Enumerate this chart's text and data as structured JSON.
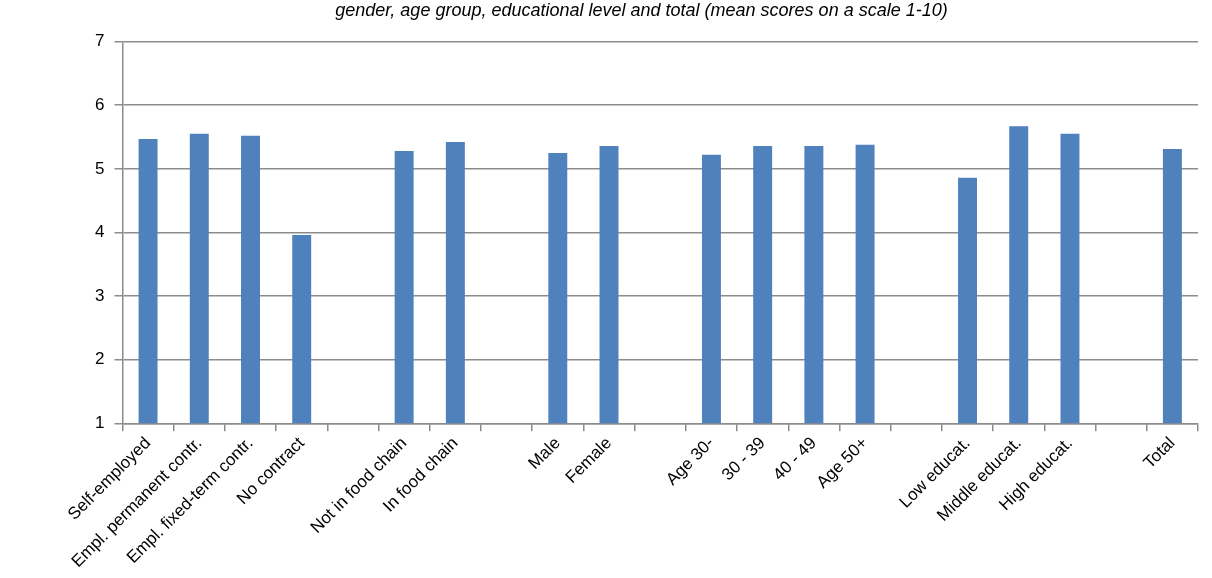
{
  "chart_data": {
    "type": "bar",
    "title": "gender, age group, educational level and total (mean scores on a scale 1-10)",
    "categories": [
      "Self-employed",
      "Empl. permanent contr.",
      "Empl. fixed-term contr.",
      "No contract",
      null,
      "Not in food chain",
      "In food chain",
      null,
      "Male",
      "Female",
      null,
      "Age 30-",
      "30 - 39",
      "40 - 49",
      "Age 50+",
      null,
      "Low educat.",
      "Middle educat.",
      "High educat.",
      null,
      "Total"
    ],
    "values": [
      5.47,
      5.55,
      5.52,
      3.96,
      null,
      5.28,
      5.42,
      null,
      5.25,
      5.36,
      null,
      5.22,
      5.36,
      5.36,
      5.38,
      null,
      4.86,
      5.67,
      5.55,
      null,
      5.31
    ],
    "color": "#4f81bd",
    "ylim": [
      1,
      7
    ],
    "yticks": [
      1,
      2,
      3,
      4,
      5,
      6,
      7
    ],
    "grid": "y",
    "legend": false
  }
}
